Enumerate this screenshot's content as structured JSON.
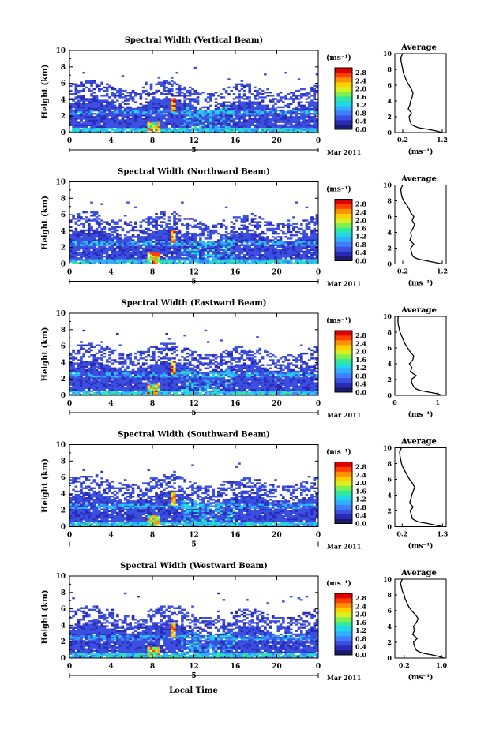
{
  "figure": {
    "xlabel": "Local Time",
    "date_label": "Mar 2011",
    "day_label": "5",
    "colorbar_unit": "(ms⁻¹)",
    "avg_title": "Average",
    "avg_xlabel": "(ms⁻¹)",
    "colormap": [
      "#1a1a6e",
      "#2a2ab8",
      "#3b4fe0",
      "#3f7fff",
      "#2fb0ff",
      "#20d8e8",
      "#30e8a0",
      "#7ef050",
      "#d8f020",
      "#ffd000",
      "#ff9000",
      "#ff4000",
      "#e00000"
    ]
  },
  "chart_data": [
    {
      "type": "heatmap",
      "title": "Spectral Width (Vertical Beam)",
      "ylabel": "Height (km)",
      "xlim": [
        0,
        24
      ],
      "ylim": [
        0,
        10
      ],
      "xticks": [
        "0",
        "4",
        "8",
        "12",
        "16",
        "20",
        "0"
      ],
      "yticks": [
        "0",
        "2",
        "4",
        "6",
        "8",
        "10"
      ],
      "colorbar_ticks": [
        "0.0",
        "0.4",
        "0.8",
        "1.2",
        "1.6",
        "2.0",
        "2.4",
        "2.8"
      ],
      "avg": {
        "xticks": [
          "0.2",
          "1.2"
        ],
        "xlim": [
          0,
          1.3
        ],
        "height": [
          0,
          0.2,
          0.4,
          0.6,
          0.8,
          1.0,
          1.5,
          2,
          2.5,
          3,
          3.5,
          4,
          4.5,
          5,
          5.5,
          6,
          6.5,
          7,
          7.5,
          8,
          8.5,
          9,
          9.5,
          10
        ],
        "width": [
          1.2,
          1.05,
          0.85,
          0.6,
          0.5,
          0.42,
          0.38,
          0.36,
          0.42,
          0.34,
          0.38,
          0.4,
          0.44,
          0.46,
          0.42,
          0.36,
          0.3,
          0.26,
          0.22,
          0.2,
          0.18,
          0.16,
          0.15,
          0.2
        ]
      }
    },
    {
      "type": "heatmap",
      "title": "Spectral Width (Northward Beam)",
      "ylabel": "Height (km)",
      "xlim": [
        0,
        24
      ],
      "ylim": [
        0,
        10
      ],
      "xticks": [
        "0",
        "4",
        "8",
        "12",
        "16",
        "20",
        "0"
      ],
      "yticks": [
        "0",
        "2",
        "4",
        "6",
        "8",
        "10"
      ],
      "colorbar_ticks": [
        "0.0",
        "0.4",
        "0.8",
        "1.2",
        "1.6",
        "2.0",
        "2.4",
        "2.8"
      ],
      "avg": {
        "xticks": [
          "0.2",
          "1.2"
        ],
        "xlim": [
          0,
          1.3
        ],
        "height": [
          0,
          0.2,
          0.4,
          0.6,
          0.8,
          1.0,
          1.5,
          2,
          2.5,
          3,
          3.5,
          4,
          4.5,
          5,
          5.5,
          6,
          6.5,
          7,
          7.5,
          8,
          8.5,
          9,
          9.5,
          10
        ],
        "width": [
          1.2,
          1.0,
          0.8,
          0.6,
          0.5,
          0.45,
          0.42,
          0.4,
          0.48,
          0.38,
          0.42,
          0.4,
          0.46,
          0.5,
          0.44,
          0.48,
          0.4,
          0.36,
          0.3,
          0.22,
          0.18,
          0.16,
          0.15,
          0.2
        ]
      }
    },
    {
      "type": "heatmap",
      "title": "Spectral Width (Eastward Beam)",
      "ylabel": "Height (km)",
      "xlim": [
        0,
        24
      ],
      "ylim": [
        0,
        10
      ],
      "xticks": [
        "0",
        "4",
        "8",
        "12",
        "16",
        "20",
        "0"
      ],
      "yticks": [
        "0",
        "2",
        "4",
        "6",
        "8",
        "10"
      ],
      "colorbar_ticks": [
        "0.0",
        "0.4",
        "0.8",
        "1.2",
        "1.6",
        "2.0",
        "2.4",
        "2.8"
      ],
      "avg": {
        "xticks": [
          "0",
          "1"
        ],
        "xlim": [
          0,
          1.2
        ],
        "height": [
          0,
          0.2,
          0.4,
          0.6,
          0.8,
          1.0,
          1.5,
          2,
          2.5,
          3,
          3.5,
          4,
          4.5,
          5,
          5.5,
          6,
          6.5,
          7,
          7.5,
          8,
          8.5,
          9,
          9.5,
          10
        ],
        "width": [
          1.1,
          1.0,
          0.8,
          0.6,
          0.5,
          0.45,
          0.4,
          0.38,
          0.5,
          0.36,
          0.4,
          0.34,
          0.42,
          0.44,
          0.36,
          0.3,
          0.24,
          0.2,
          0.16,
          0.12,
          0.1,
          0.08,
          0.07,
          0.08
        ]
      }
    },
    {
      "type": "heatmap",
      "title": "Spectral Width (Southward Beam)",
      "ylabel": "Height (km)",
      "xlim": [
        0,
        24
      ],
      "ylim": [
        0,
        10
      ],
      "xticks": [
        "0",
        "4",
        "8",
        "12",
        "16",
        "20",
        "0"
      ],
      "yticks": [
        "0",
        "2",
        "4",
        "6",
        "8",
        "10"
      ],
      "colorbar_ticks": [
        "0.0",
        "0.4",
        "0.8",
        "1.2",
        "1.6",
        "2.0",
        "2.4",
        "2.8"
      ],
      "avg": {
        "xticks": [
          "0.2",
          "1.3"
        ],
        "xlim": [
          0,
          1.4
        ],
        "height": [
          0,
          0.2,
          0.4,
          0.6,
          0.8,
          1.0,
          1.5,
          2,
          2.5,
          3,
          3.5,
          4,
          4.5,
          5,
          5.5,
          6,
          6.5,
          7,
          7.5,
          8,
          8.5,
          9,
          9.5,
          10
        ],
        "width": [
          1.3,
          1.1,
          0.9,
          0.65,
          0.55,
          0.48,
          0.45,
          0.42,
          0.5,
          0.4,
          0.44,
          0.46,
          0.5,
          0.54,
          0.48,
          0.4,
          0.34,
          0.28,
          0.22,
          0.18,
          0.16,
          0.14,
          0.13,
          0.18
        ]
      }
    },
    {
      "type": "heatmap",
      "title": "Spectral Width (Westward Beam)",
      "ylabel": "Height (km)",
      "xlim": [
        0,
        24
      ],
      "ylim": [
        0,
        10
      ],
      "xticks": [
        "0",
        "4",
        "8",
        "12",
        "16",
        "20",
        "0"
      ],
      "yticks": [
        "0",
        "2",
        "4",
        "6",
        "8",
        "10"
      ],
      "colorbar_ticks": [
        "0.0",
        "0.4",
        "0.8",
        "1.2",
        "1.6",
        "2.0",
        "2.4",
        "2.8"
      ],
      "avg": {
        "xticks": [
          "0.2",
          "1.0"
        ],
        "xlim": [
          0,
          1.1
        ],
        "height": [
          0,
          0.2,
          0.4,
          0.6,
          0.8,
          1.0,
          1.5,
          2,
          2.5,
          3,
          3.5,
          4,
          4.5,
          5,
          5.5,
          6,
          6.5,
          7,
          7.5,
          8,
          8.5,
          9,
          9.5,
          10
        ],
        "width": [
          1.05,
          0.95,
          0.8,
          0.62,
          0.52,
          0.46,
          0.42,
          0.4,
          0.48,
          0.38,
          0.42,
          0.4,
          0.46,
          0.5,
          0.44,
          0.36,
          0.3,
          0.26,
          0.22,
          0.2,
          0.16,
          0.14,
          0.12,
          0.16
        ]
      }
    }
  ]
}
